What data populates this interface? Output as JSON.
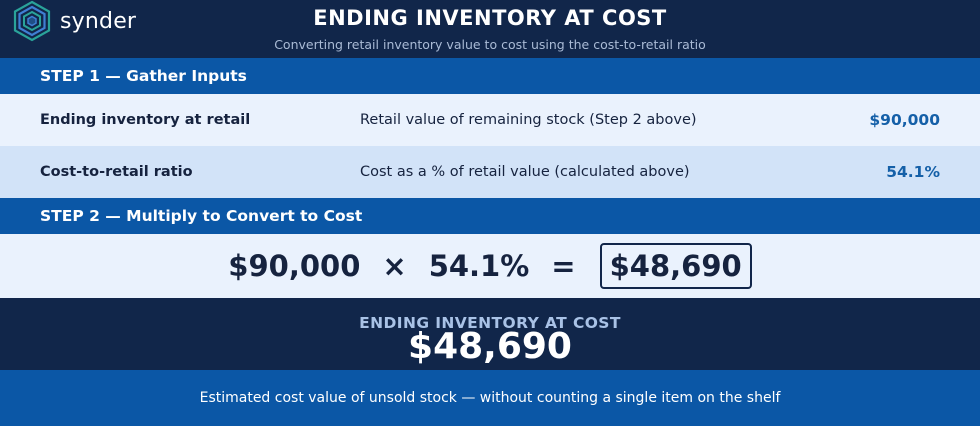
{
  "brand": {
    "name": "synder",
    "icon": "synder-hexagon-logo-icon",
    "colors": {
      "hex_teal": "#2aa39a",
      "hex_blue": "#3f7fd4",
      "hex_dark": "#1f4f86"
    }
  },
  "header": {
    "title": "ENDING INVENTORY AT COST",
    "subtitle": "Converting retail inventory value to cost using the cost-to-retail ratio"
  },
  "step1": {
    "heading": "STEP 1 — Gather Inputs",
    "rows": [
      {
        "label": "Ending inventory at retail",
        "description": "Retail value of remaining stock (Step 2 above)",
        "value": "$90,000"
      },
      {
        "label": "Cost-to-retail ratio",
        "description": "Cost as a % of retail value (calculated above)",
        "value": "54.1%"
      }
    ]
  },
  "step2": {
    "heading": "STEP 2 — Multiply to Convert to Cost",
    "equation": {
      "left": "$90,000",
      "times": "×",
      "right": "54.1%",
      "equals": "=",
      "result": "$48,690"
    }
  },
  "result": {
    "label": "ENDING INVENTORY AT COST",
    "value": "$48,690"
  },
  "footer": {
    "text": "Estimated cost value of unsold stock — without counting a single item on the shelf"
  },
  "colors": {
    "navy": "#11264a",
    "blue": "#0b57a6",
    "row_light": "#eaf2fd",
    "row_mid": "#d2e3f8",
    "value_blue": "#1560a8"
  }
}
